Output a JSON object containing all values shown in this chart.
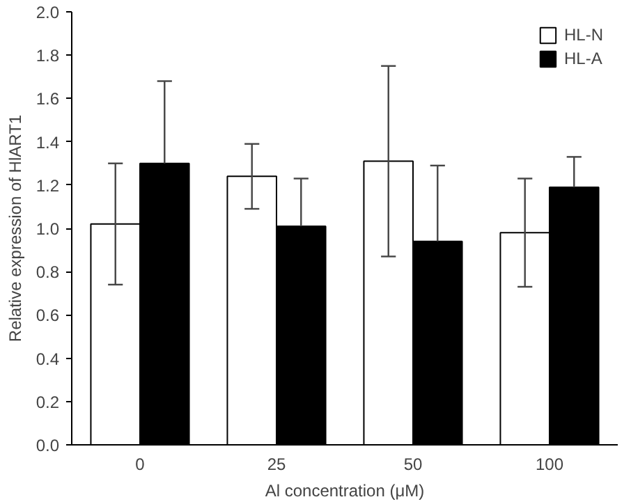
{
  "chart_data": {
    "type": "bar",
    "xlabel": "Al concentration (μM)",
    "ylabel": "Relative expression of HlART1",
    "categories": [
      "0",
      "25",
      "50",
      "100"
    ],
    "series": [
      {
        "name": "HL-N",
        "color": "#ffffff",
        "values": [
          1.02,
          1.24,
          1.31,
          0.98
        ],
        "errors": [
          0.28,
          0.15,
          0.44,
          0.25
        ]
      },
      {
        "name": "HL-A",
        "color": "#000000",
        "values": [
          1.3,
          1.01,
          0.94,
          1.19
        ],
        "errors": [
          [
            1.3,
            1.68
          ],
          [
            1.01,
            1.23
          ],
          [
            0.94,
            1.29
          ],
          [
            1.19,
            1.33
          ]
        ]
      }
    ],
    "ylim": [
      0,
      2.0
    ],
    "yticks": [
      {
        "value": 0,
        "label": "0.0"
      },
      0.2,
      0.4,
      0.6,
      0.8,
      {
        "value": 1,
        "label": "1.0"
      },
      1.2,
      1.4,
      1.6,
      1.8,
      {
        "value": 2,
        "label": "2.0"
      }
    ],
    "grid": false,
    "legend": "top right"
  }
}
